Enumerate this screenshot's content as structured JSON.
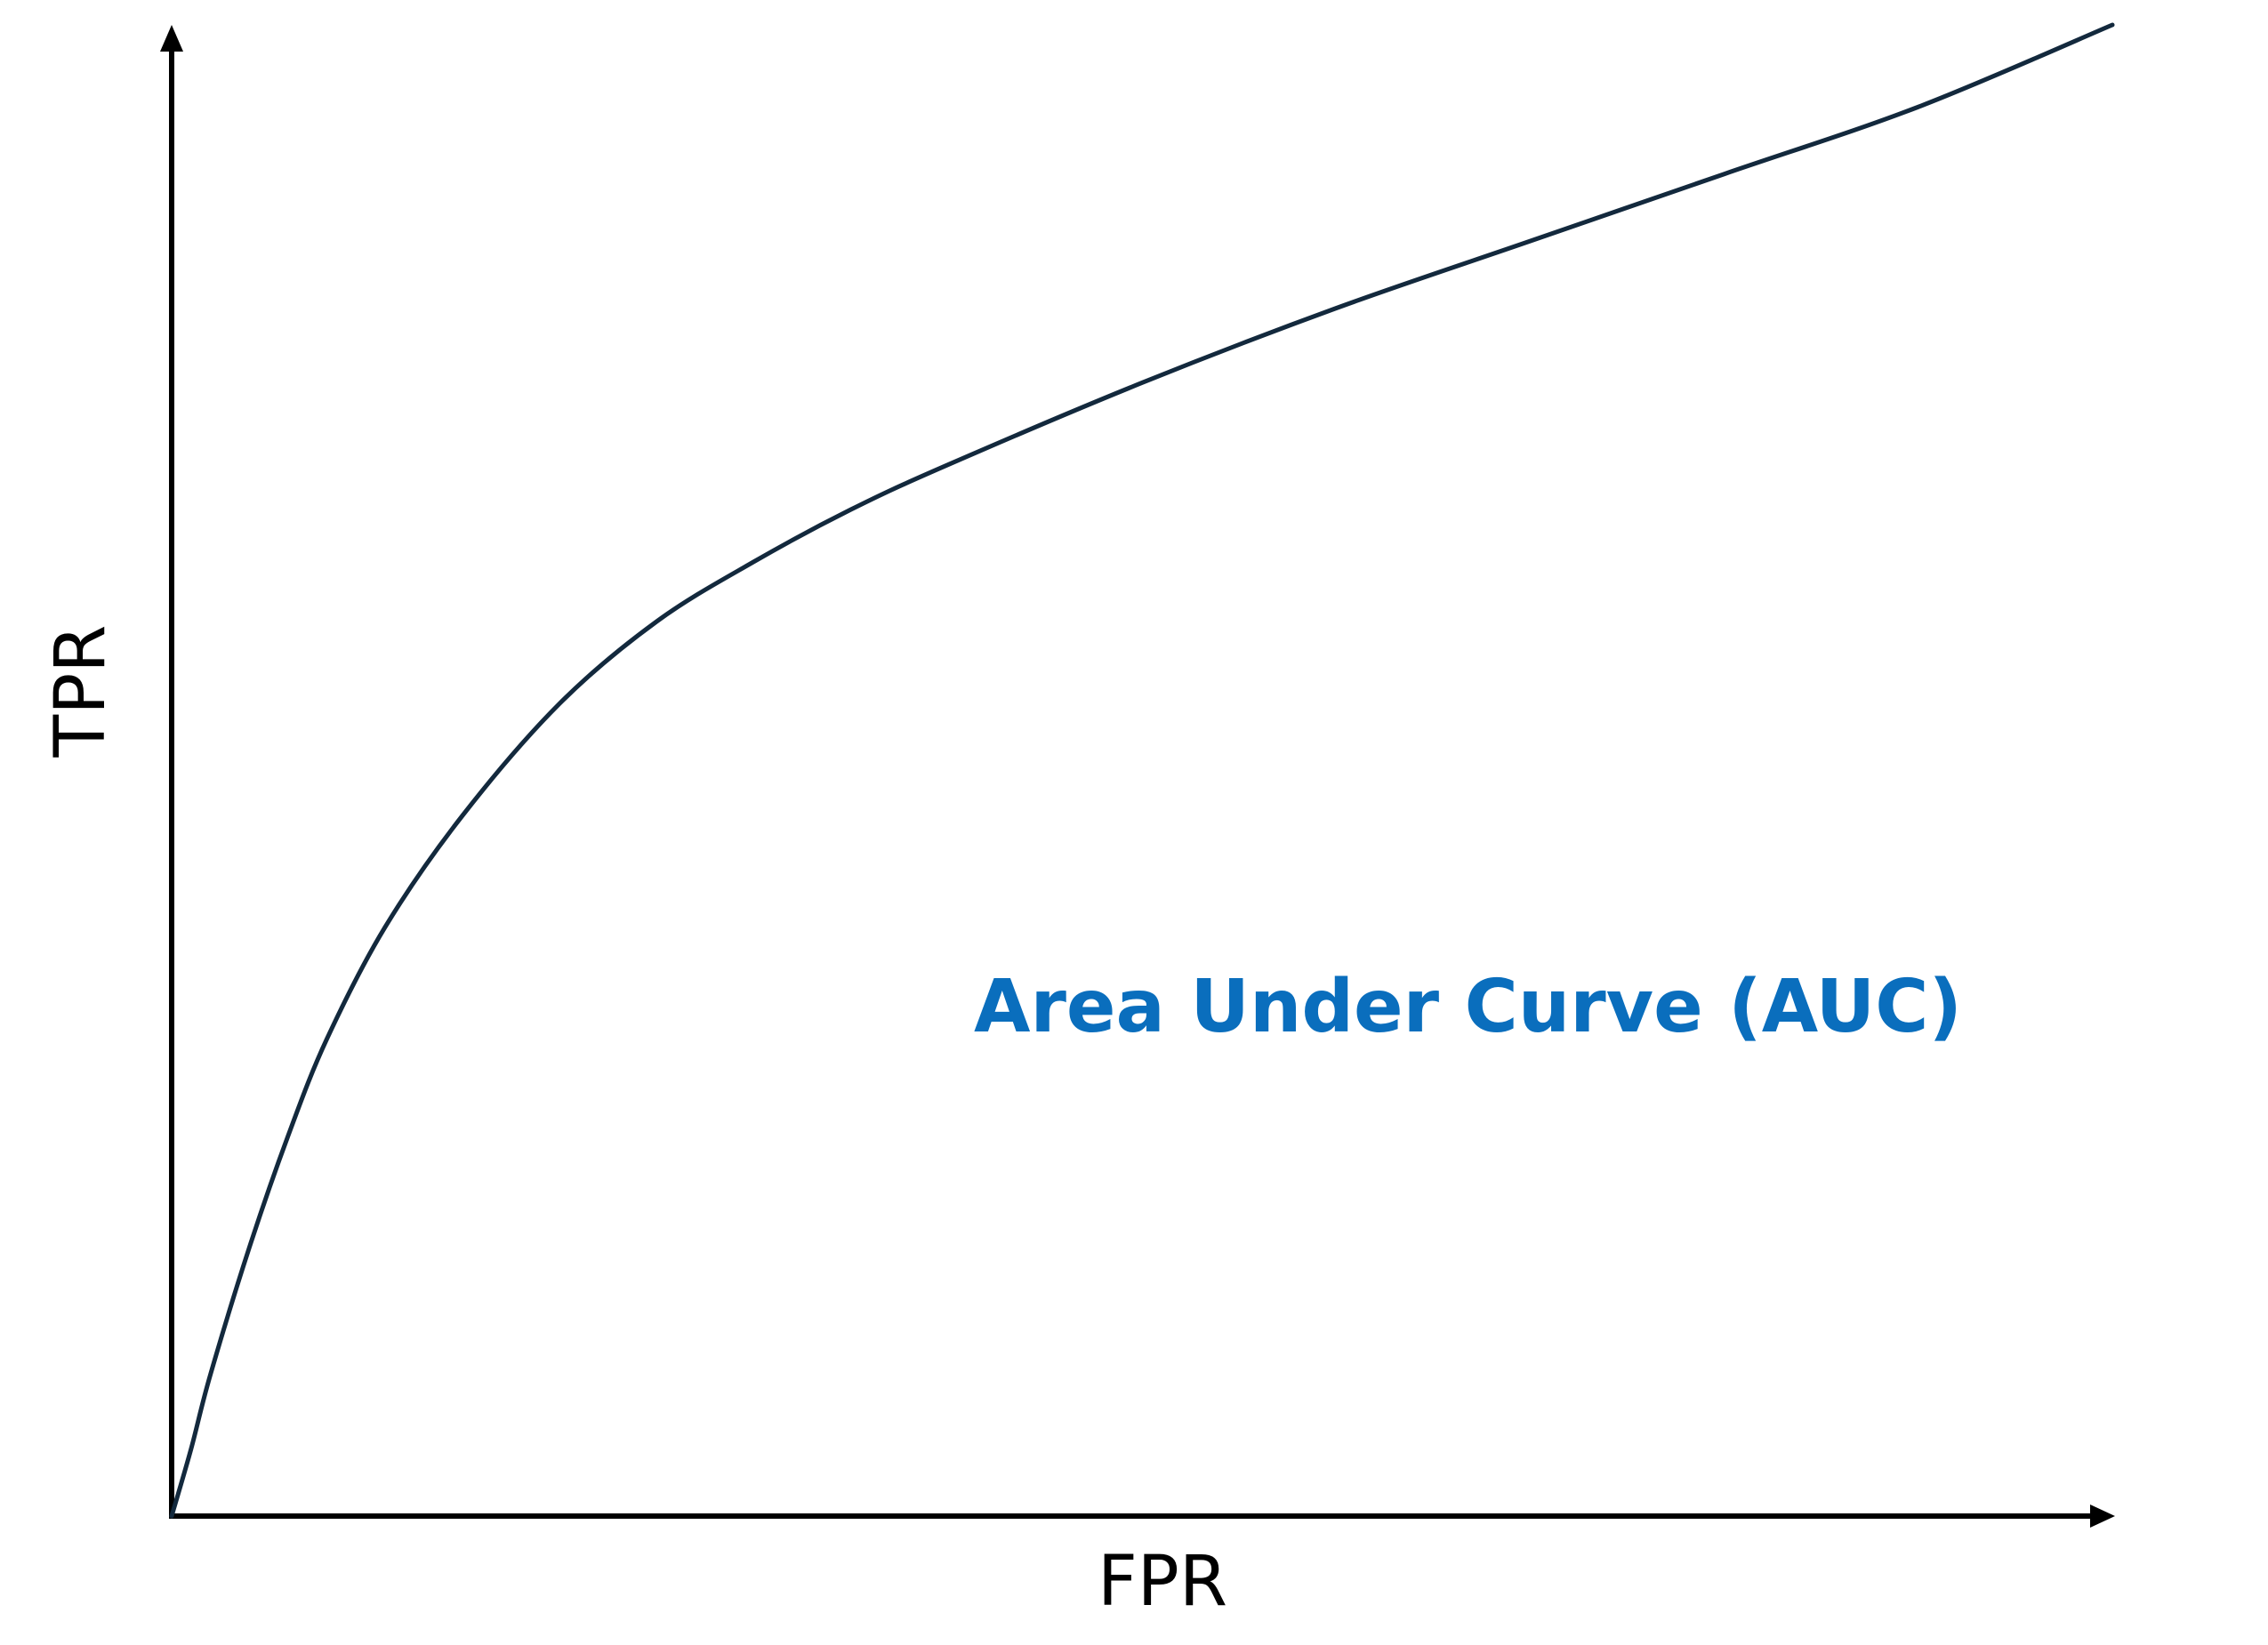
{
  "chart_data": {
    "type": "line",
    "title": "",
    "xlabel": "FPR",
    "ylabel": "TPR",
    "xlim": [
      0,
      1
    ],
    "ylim": [
      0,
      1
    ],
    "grid": false,
    "series": [
      {
        "x": [
          0.0,
          0.01,
          0.02,
          0.04,
          0.06,
          0.08,
          0.11,
          0.15,
          0.2,
          0.25,
          0.3,
          0.35,
          0.4,
          0.5,
          0.6,
          0.7,
          0.8,
          0.9,
          1.0
        ],
        "y": [
          0.0,
          0.045,
          0.095,
          0.18,
          0.255,
          0.32,
          0.395,
          0.47,
          0.545,
          0.6,
          0.64,
          0.675,
          0.705,
          0.76,
          0.81,
          0.855,
          0.9,
          0.945,
          1.0
        ],
        "color": "#13293d"
      }
    ],
    "annotations": [
      {
        "text": "Area Under Curve (AUC)",
        "color": "#0a6ebd"
      }
    ]
  }
}
